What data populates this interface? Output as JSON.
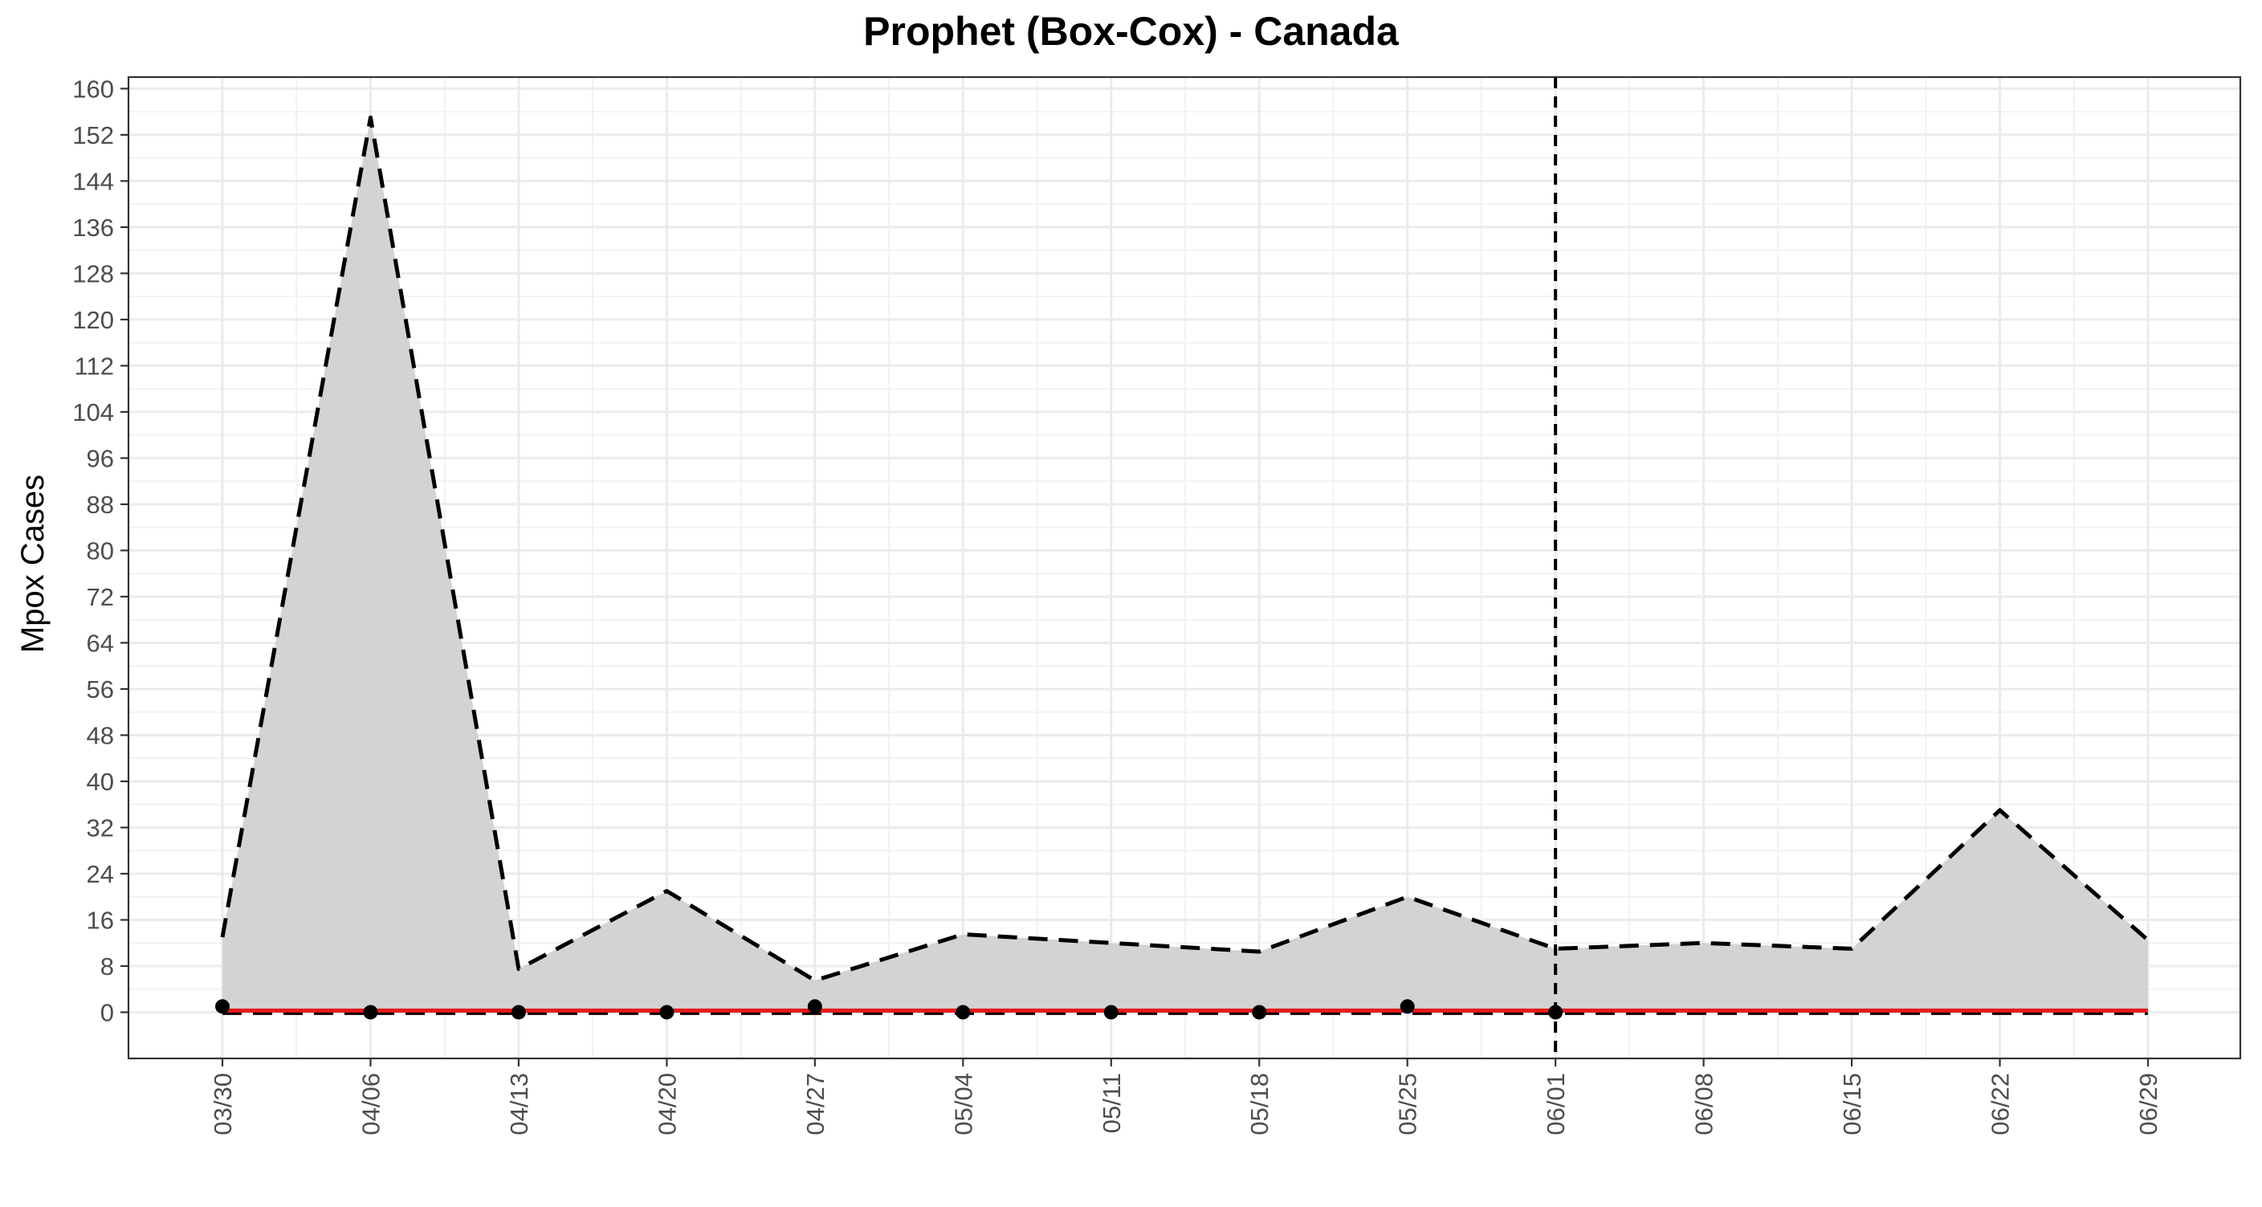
{
  "chart_data": {
    "type": "area",
    "title": "Prophet (Box-Cox) - Canada",
    "xlabel": "",
    "ylabel": "Mpox Cases",
    "x": [
      "03/30",
      "04/06",
      "04/13",
      "04/20",
      "04/27",
      "05/04",
      "05/11",
      "05/18",
      "05/25",
      "06/01",
      "06/08",
      "06/15",
      "06/22",
      "06/29"
    ],
    "ylim": [
      -8,
      162
    ],
    "yticks": [
      0,
      8,
      16,
      24,
      32,
      40,
      48,
      56,
      64,
      72,
      80,
      88,
      96,
      104,
      112,
      120,
      128,
      136,
      144,
      152,
      160
    ],
    "grid": true,
    "forecast_start": "06/01",
    "series": [
      {
        "role": "upper_bound",
        "style": "dashed",
        "values": [
          13,
          155,
          7.5,
          21,
          5.5,
          13.5,
          12,
          10.5,
          20,
          11,
          12,
          11,
          35,
          12.5
        ]
      },
      {
        "role": "lower_bound",
        "style": "dashed",
        "values": [
          -0.2,
          -0.2,
          -0.2,
          -0.2,
          -0.2,
          -0.2,
          -0.2,
          -0.2,
          -0.2,
          -0.2,
          -0.2,
          -0.2,
          -0.2,
          -0.2
        ]
      },
      {
        "role": "prediction",
        "style": "solid",
        "values": [
          0.3,
          0.3,
          0.3,
          0.3,
          0.3,
          0.3,
          0.3,
          0.3,
          0.3,
          0.3,
          0.3,
          0.3,
          0.3,
          0.3
        ]
      },
      {
        "role": "observed",
        "style": "points",
        "x": [
          "03/30",
          "04/06",
          "04/13",
          "04/20",
          "04/27",
          "05/04",
          "05/11",
          "05/18",
          "05/25",
          "06/01"
        ],
        "values": [
          1,
          0,
          0,
          0,
          1,
          0,
          0,
          0,
          1,
          0
        ]
      }
    ],
    "colors": {
      "band_fill": "#d3d3d3",
      "bound_line": "#000000",
      "prediction_line": "#e41a1c",
      "points": "#000000",
      "grid_major": "#ebebeb",
      "grid_minor": "#f2f2f2",
      "panel_border": "#333333"
    }
  }
}
